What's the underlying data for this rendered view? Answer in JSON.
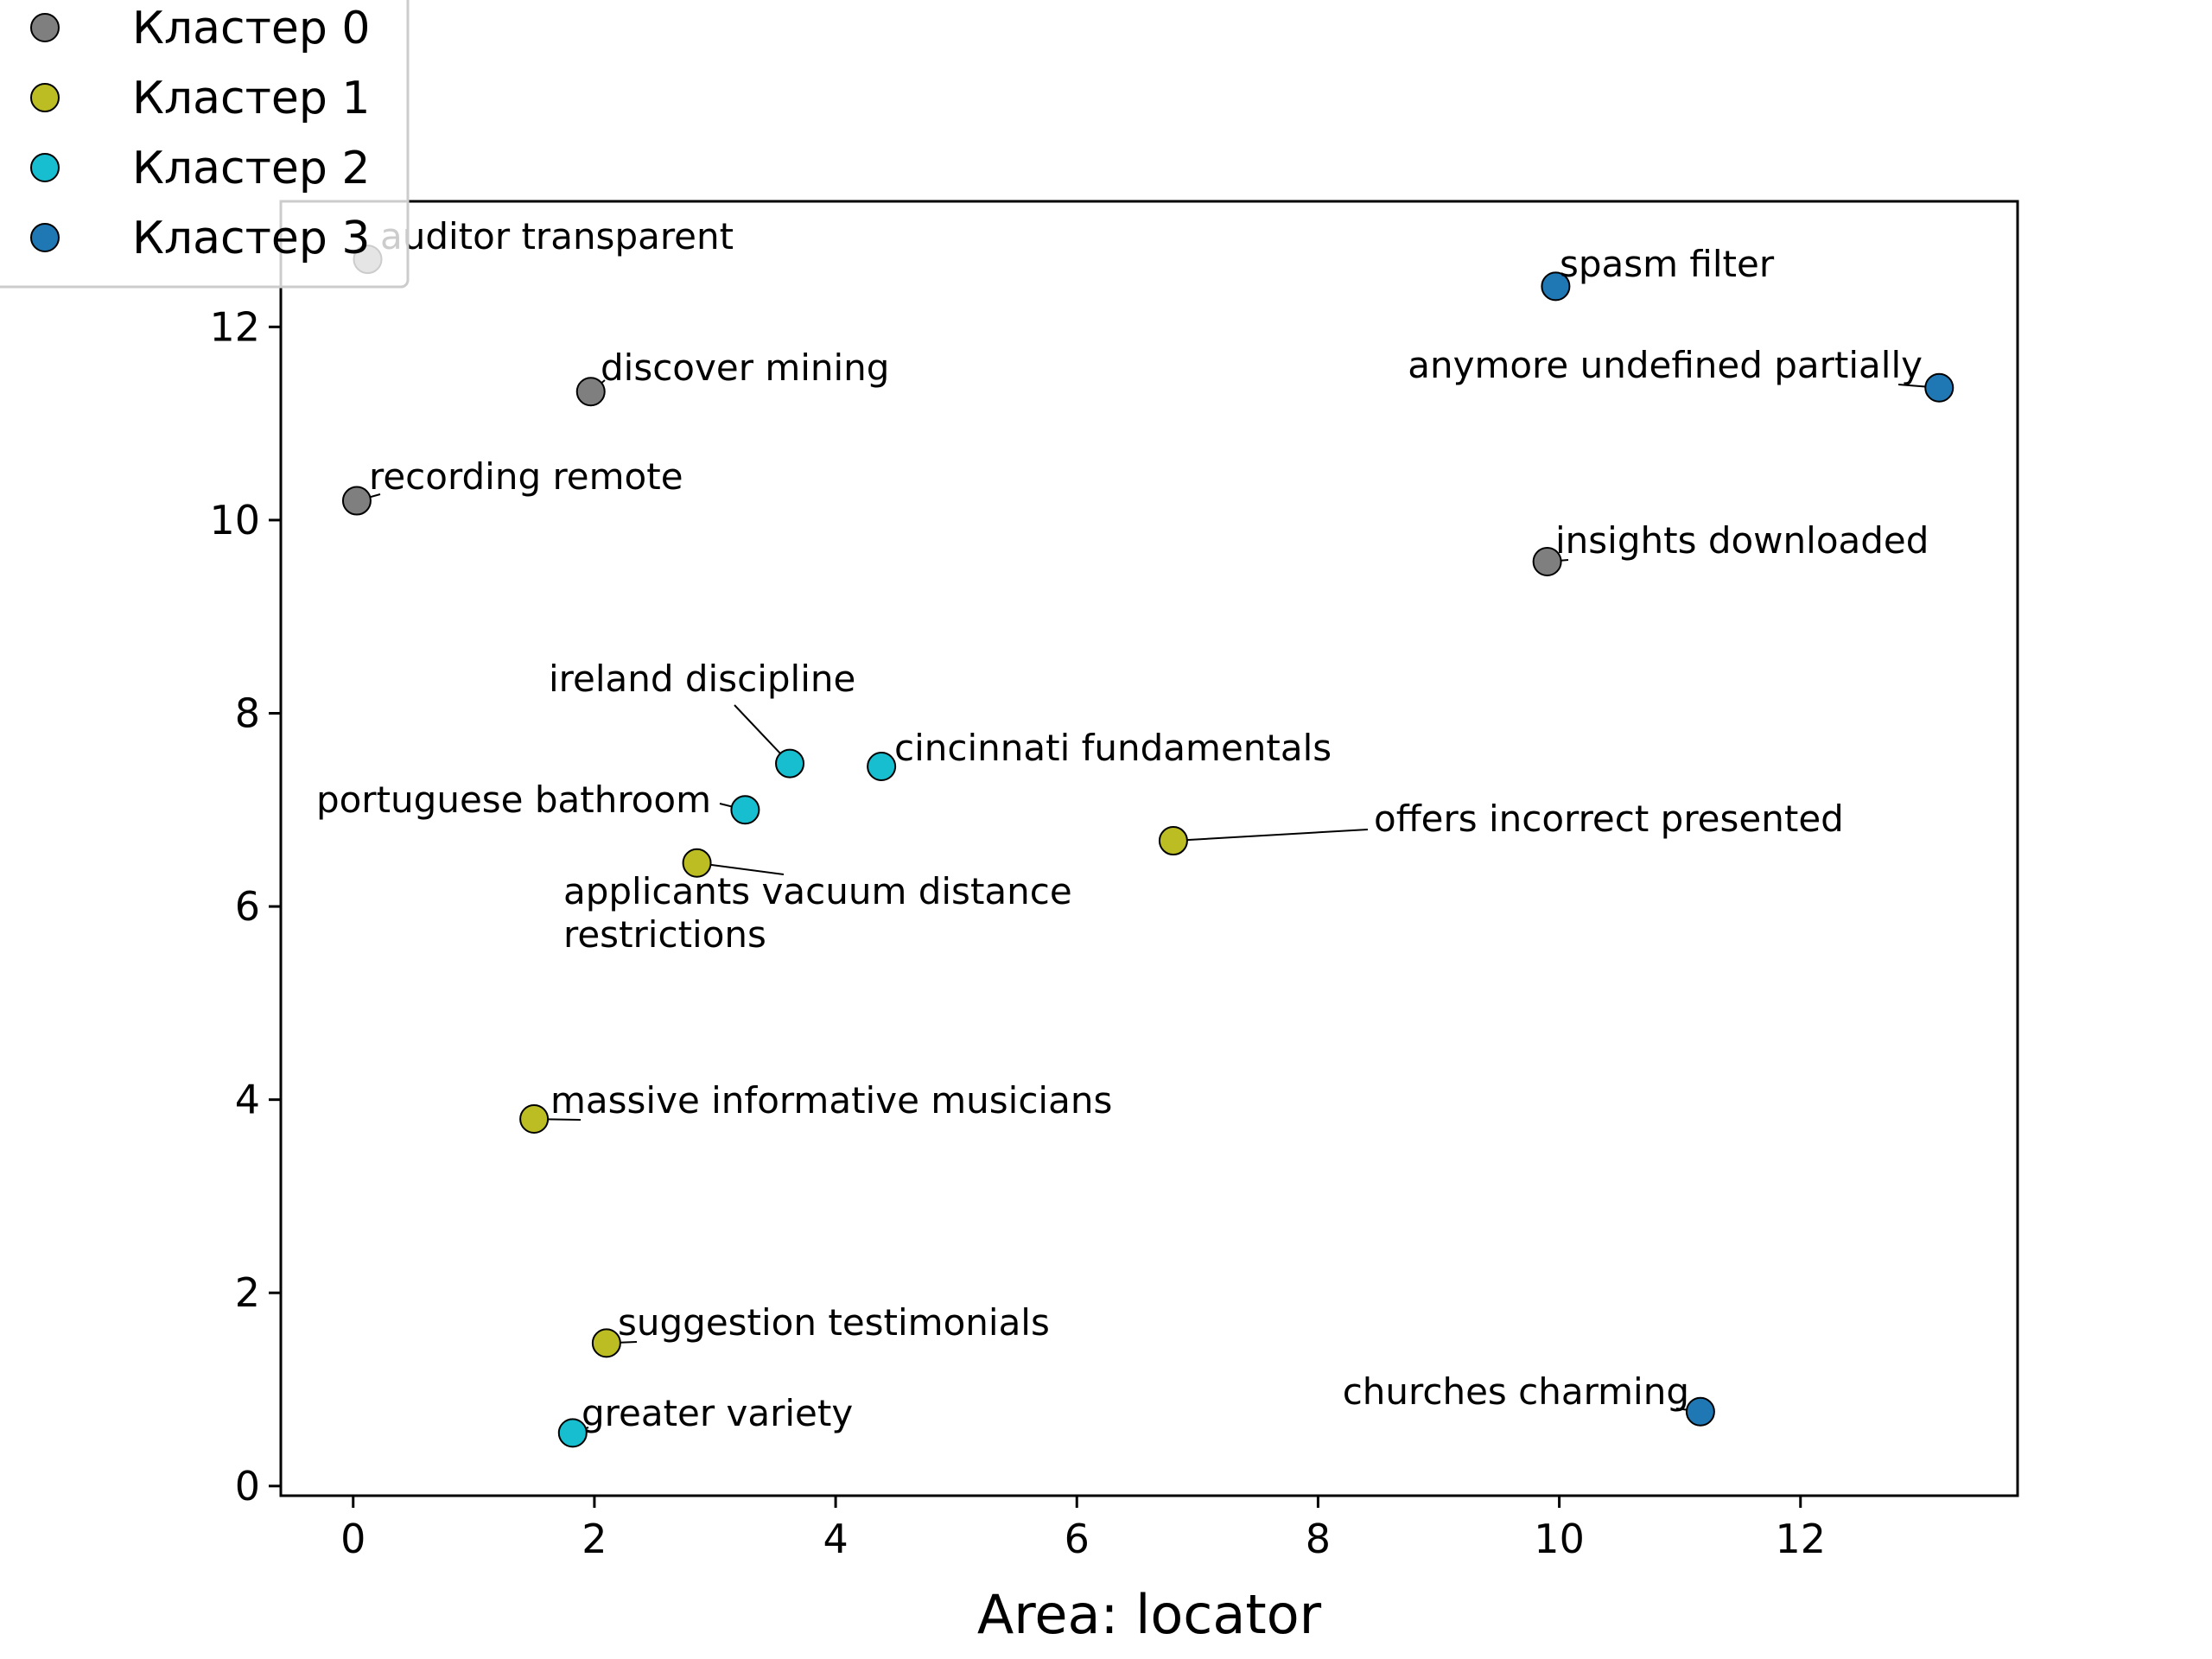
{
  "chart_data": {
    "type": "scatter",
    "title": "",
    "xlabel": "Area: locator",
    "ylabel": "",
    "xlim": [
      -0.6,
      13.8
    ],
    "ylim": [
      -0.1,
      13.3
    ],
    "xticks": [
      0,
      2,
      4,
      6,
      8,
      10,
      12
    ],
    "yticks": [
      0,
      2,
      4,
      6,
      8,
      10,
      12
    ],
    "grid": false,
    "legend_position": "top-left",
    "series": [
      {
        "name": "Кластер 0",
        "color": "#7f7f7f",
        "points": [
          {
            "x": 0.12,
            "y": 12.7,
            "label": "auditor transparent"
          },
          {
            "x": 1.97,
            "y": 11.33,
            "label": "discover mining"
          },
          {
            "x": 0.03,
            "y": 10.2,
            "label": "recording remote"
          },
          {
            "x": 9.9,
            "y": 9.57,
            "label": "insights downloaded"
          }
        ]
      },
      {
        "name": "Кластер 1",
        "color": "#bcbd22",
        "points": [
          {
            "x": 6.8,
            "y": 6.68,
            "label": "offers incorrect presented"
          },
          {
            "x": 2.85,
            "y": 6.45,
            "label": "applicants vacuum distance restrictions"
          },
          {
            "x": 1.5,
            "y": 3.8,
            "label": "massive informative musicians"
          },
          {
            "x": 2.1,
            "y": 1.48,
            "label": "suggestion testimonials"
          }
        ]
      },
      {
        "name": "Кластер 2",
        "color": "#17becf",
        "points": [
          {
            "x": 3.62,
            "y": 7.48,
            "label": "ireland discipline"
          },
          {
            "x": 4.38,
            "y": 7.45,
            "label": "cincinnati fundamentals"
          },
          {
            "x": 3.25,
            "y": 7.0,
            "label": "portuguese bathroom"
          },
          {
            "x": 1.82,
            "y": 0.55,
            "label": "greater variety"
          }
        ]
      },
      {
        "name": "Кластер 3",
        "color": "#1f77b4",
        "points": [
          {
            "x": 9.97,
            "y": 12.42,
            "label": "spasm filter"
          },
          {
            "x": 13.15,
            "y": 11.37,
            "label": "anymore undefined partially"
          },
          {
            "x": 11.17,
            "y": 0.77,
            "label": "churches charming"
          }
        ]
      }
    ]
  }
}
